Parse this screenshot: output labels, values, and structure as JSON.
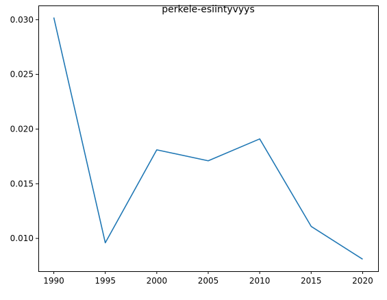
{
  "chart_data": {
    "type": "line",
    "title": "perkele-esiintyvyys",
    "xlabel": "",
    "ylabel": "",
    "x": [
      1990,
      1995,
      2000,
      2005,
      2010,
      2015,
      2020
    ],
    "series": [
      {
        "values": [
          0.0302,
          0.0096,
          0.0181,
          0.0171,
          0.0191,
          0.0111,
          0.0081
        ],
        "color": "#1f77b4"
      }
    ],
    "xticks": [
      "1990",
      "1995",
      "2000",
      "2005",
      "2010",
      "2015",
      "2020"
    ],
    "yticks": [
      "0.010",
      "0.015",
      "0.020",
      "0.025",
      "0.030"
    ],
    "xlim": [
      1988.5,
      2021.5
    ],
    "ylim": [
      0.007,
      0.0313
    ],
    "grid": false,
    "legend": false
  }
}
